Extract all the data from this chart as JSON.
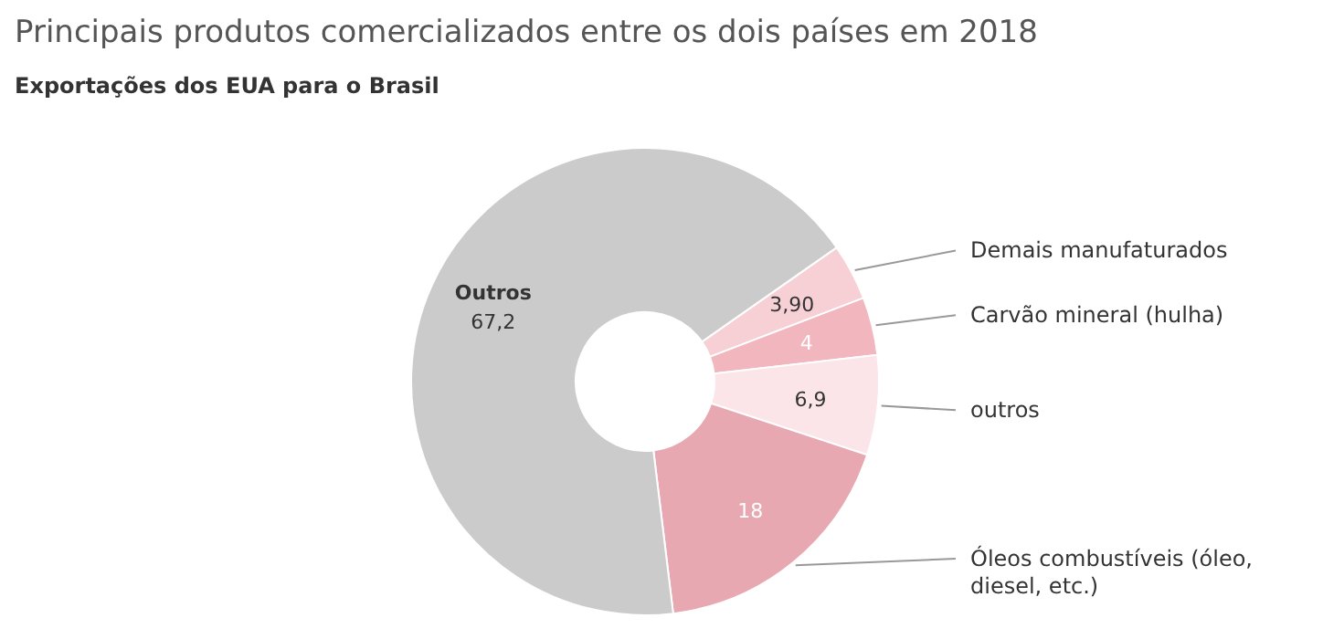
{
  "chart_data": {
    "type": "donut",
    "title": "Principais produtos comercializados entre os dois países em 2018",
    "subtitle": "Exportações dos EUA para o Brasil",
    "categories": [
      "Demais manufaturados",
      "Carvão mineral (hulha)",
      "outros",
      "Óleos combustíveis (óleo, diesel, etc.)",
      "Outros"
    ],
    "values": [
      3.9,
      4,
      6.9,
      18,
      67.2
    ],
    "value_labels": [
      "3,90",
      "4",
      "6,9",
      "18",
      "67,2"
    ],
    "colors": [
      "#f7d0d6",
      "#f2b6bf",
      "#fbe5e8",
      "#e8a8b1",
      "#cbcbcb"
    ],
    "legend": false
  }
}
